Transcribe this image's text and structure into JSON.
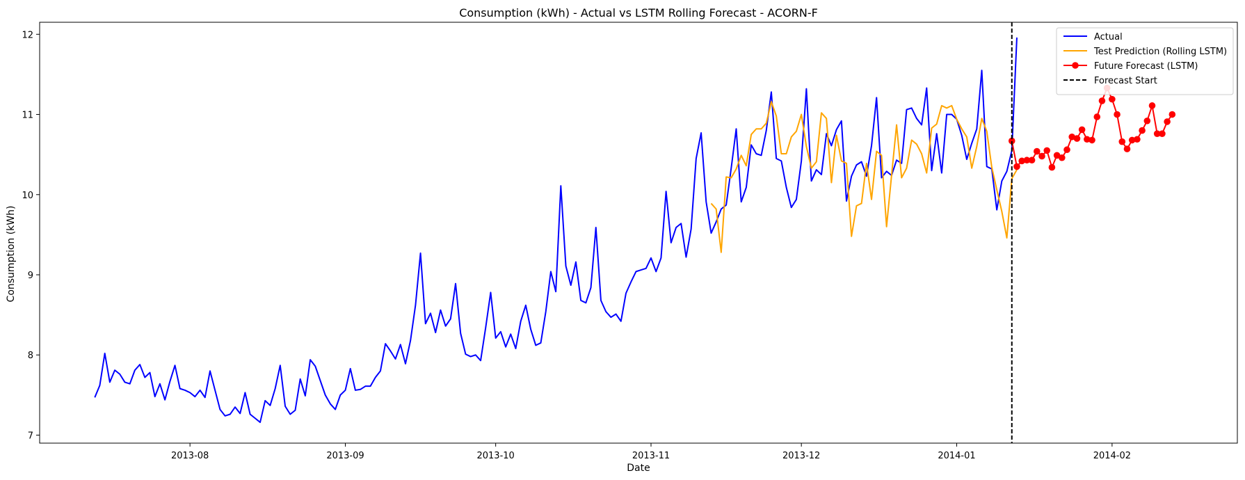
{
  "chart_data": {
    "type": "line",
    "title": "Consumption (kWh) - Actual vs LSTM Rolling Forecast - ACORN-F",
    "xlabel": "Date",
    "ylabel": "Consumption (kWh)",
    "xlim": [
      "2013-07-02",
      "2014-02-26"
    ],
    "ylim": [
      6.9,
      12.15
    ],
    "x_ticks": [
      {
        "date": "2013-08-01",
        "label": "2013-08"
      },
      {
        "date": "2013-09-01",
        "label": "2013-09"
      },
      {
        "date": "2013-10-01",
        "label": "2013-10"
      },
      {
        "date": "2013-11-01",
        "label": "2013-11"
      },
      {
        "date": "2013-12-01",
        "label": "2013-12"
      },
      {
        "date": "2014-01-01",
        "label": "2014-01"
      },
      {
        "date": "2014-02-01",
        "label": "2014-02"
      }
    ],
    "y_ticks": [
      7,
      8,
      9,
      10,
      11,
      12
    ],
    "grid": false,
    "legend_position": "top-right",
    "forecast_start": {
      "date": "2014-01-12",
      "label": "Forecast Start",
      "color": "#000000"
    },
    "series": [
      {
        "name": "Actual",
        "color": "#0000ff",
        "marker": "none",
        "start_date": "2013-07-13",
        "values": [
          7.47,
          7.62,
          8.02,
          7.66,
          7.81,
          7.76,
          7.66,
          7.64,
          7.81,
          7.88,
          7.72,
          7.78,
          7.48,
          7.64,
          7.44,
          7.67,
          7.87,
          7.58,
          7.56,
          7.53,
          7.48,
          7.56,
          7.47,
          7.8,
          7.56,
          7.32,
          7.24,
          7.26,
          7.35,
          7.27,
          7.53,
          7.26,
          7.21,
          7.16,
          7.43,
          7.37,
          7.58,
          7.87,
          7.36,
          7.26,
          7.31,
          7.7,
          7.49,
          7.94,
          7.86,
          7.68,
          7.5,
          7.39,
          7.32,
          7.5,
          7.56,
          7.83,
          7.56,
          7.57,
          7.61,
          7.61,
          7.72,
          7.8,
          8.14,
          8.05,
          7.95,
          8.13,
          7.89,
          8.18,
          8.62,
          9.27,
          8.39,
          8.52,
          8.28,
          8.56,
          8.36,
          8.45,
          8.89,
          8.27,
          8.01,
          7.98,
          8.0,
          7.93,
          8.34,
          8.78,
          8.21,
          8.29,
          8.1,
          8.26,
          8.08,
          8.42,
          8.62,
          8.32,
          8.12,
          8.15,
          8.54,
          9.04,
          8.79,
          10.11,
          9.11,
          8.87,
          9.16,
          8.68,
          8.65,
          8.84,
          9.59,
          8.68,
          8.54,
          8.47,
          8.51,
          8.42,
          8.77,
          8.91,
          9.04,
          9.06,
          9.08,
          9.21,
          9.04,
          9.21,
          10.04,
          9.4,
          9.59,
          9.64,
          9.22,
          9.57,
          10.45,
          10.77,
          9.91,
          9.52,
          9.66,
          9.82,
          9.87,
          10.33,
          10.82,
          9.91,
          10.09,
          10.62,
          10.51,
          10.49,
          10.8,
          11.28,
          10.45,
          10.42,
          10.09,
          9.84,
          9.94,
          10.42,
          11.32,
          10.17,
          10.31,
          10.25,
          10.76,
          10.61,
          10.81,
          10.92,
          9.92,
          10.23,
          10.37,
          10.41,
          10.23,
          10.61,
          11.21,
          10.21,
          10.29,
          10.24,
          10.43,
          10.39,
          11.06,
          11.08,
          10.95,
          10.87,
          11.33,
          10.3,
          10.76,
          10.27,
          11.0,
          11.0,
          10.94,
          10.74,
          10.44,
          10.64,
          10.82,
          11.55,
          10.35,
          10.32,
          9.81,
          10.17,
          10.29,
          10.55,
          11.96
        ]
      },
      {
        "name": "Test Prediction (Rolling LSTM)",
        "color": "#ffa500",
        "marker": "none",
        "start_date": "2013-11-13",
        "values": [
          9.89,
          9.82,
          9.28,
          10.22,
          10.21,
          10.32,
          10.49,
          10.36,
          10.75,
          10.82,
          10.82,
          10.89,
          11.16,
          10.98,
          10.51,
          10.51,
          10.72,
          10.79,
          11.0,
          10.6,
          10.33,
          10.41,
          11.02,
          10.95,
          10.15,
          10.74,
          10.42,
          10.39,
          9.48,
          9.86,
          9.89,
          10.39,
          9.94,
          10.54,
          10.49,
          9.6,
          10.24,
          10.87,
          10.21,
          10.33,
          10.68,
          10.63,
          10.51,
          10.27,
          10.83,
          10.88,
          11.11,
          11.08,
          11.11,
          10.94,
          10.82,
          10.72,
          10.33,
          10.6,
          10.95,
          10.79,
          10.34,
          10.06,
          9.79,
          9.46,
          10.2,
          10.31
        ]
      },
      {
        "name": "Future Forecast (LSTM)",
        "color": "#ff0000",
        "marker": "circle",
        "start_date": "2014-01-12",
        "values": [
          10.67,
          10.35,
          10.42,
          10.43,
          10.43,
          10.54,
          10.48,
          10.55,
          10.34,
          10.49,
          10.46,
          10.56,
          10.72,
          10.7,
          10.81,
          10.69,
          10.68,
          10.97,
          11.17,
          11.33,
          11.19,
          11.0,
          10.66,
          10.57,
          10.68,
          10.69,
          10.8,
          10.92,
          11.11,
          10.76,
          10.76,
          10.91,
          11.0
        ]
      }
    ]
  }
}
